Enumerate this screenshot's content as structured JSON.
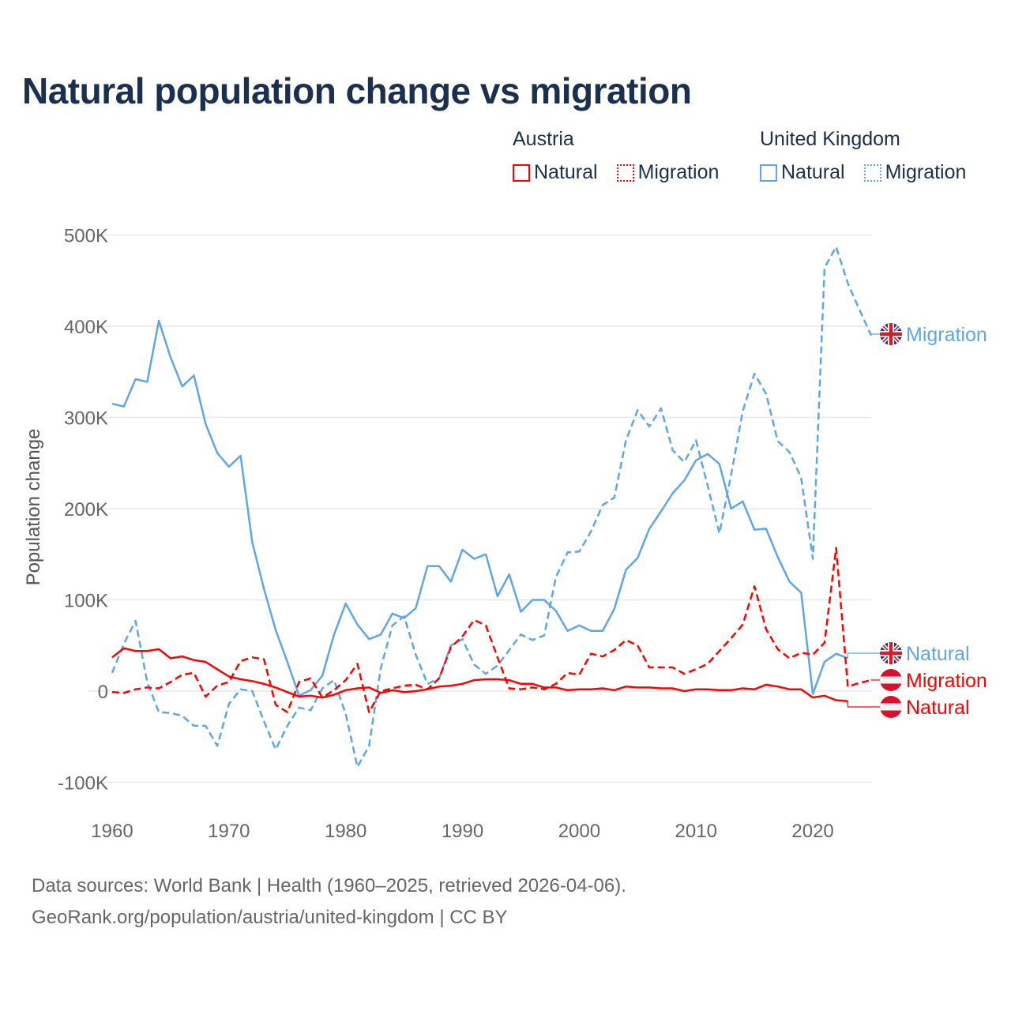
{
  "title": "Natural population change vs migration",
  "legend": {
    "groups": [
      {
        "name": "Austria",
        "items": [
          {
            "label": "Natural",
            "style": "solid"
          },
          {
            "label": "Migration",
            "style": "dotted"
          }
        ]
      },
      {
        "name": "United Kingdom",
        "items": [
          {
            "label": "Natural",
            "style": "solid"
          },
          {
            "label": "Migration",
            "style": "dotted"
          }
        ]
      }
    ]
  },
  "footer": {
    "line1": "Data sources: World Bank | Health (1960–2025, retrieved 2026-04-06).",
    "line2": "GeoRank.org/population/austria/united-kingdom | CC BY"
  },
  "chart_data": {
    "type": "line",
    "title": "Natural population change vs migration",
    "xlabel": "",
    "ylabel": "Population change",
    "xlim": [
      1960,
      2025
    ],
    "ylim": [
      -100000,
      500000
    ],
    "x_ticks": [
      1960,
      1970,
      1980,
      1990,
      2000,
      2010,
      2020
    ],
    "y_ticks": [
      {
        "v": -100000,
        "label": "-100K"
      },
      {
        "v": 0,
        "label": "0"
      },
      {
        "v": 100000,
        "label": "100K"
      },
      {
        "v": 200000,
        "label": "200K"
      },
      {
        "v": 300000,
        "label": "300K"
      },
      {
        "v": 400000,
        "label": "400K"
      },
      {
        "v": 500000,
        "label": "500K"
      }
    ],
    "grid": true,
    "legend_position": "top-right",
    "start_year": 1960,
    "series": [
      {
        "name": "United Kingdom Natural",
        "country": "United Kingdom",
        "kind": "Natural",
        "end_label": "Natural",
        "color": "#5ea6e8",
        "dashed": false,
        "flag": "uk",
        "values_k": [
          315,
          312,
          342,
          339,
          406,
          366,
          334,
          346,
          293,
          261,
          246,
          258,
          163,
          112,
          67,
          32,
          -5,
          1,
          17,
          62,
          96,
          73,
          57,
          62,
          85,
          80,
          91,
          137,
          137,
          120,
          155,
          145,
          150,
          104,
          128,
          87,
          100,
          100,
          88,
          66,
          72,
          66,
          66,
          90,
          133,
          146,
          178,
          197,
          217,
          231,
          253,
          260,
          249,
          200,
          208,
          177,
          178,
          147,
          120,
          108,
          -3,
          32,
          41,
          36
        ]
      },
      {
        "name": "United Kingdom Migration",
        "country": "United Kingdom",
        "kind": "Migration",
        "end_label": "Migration",
        "color": "#5ea6e8",
        "dashed": true,
        "flag": "uk",
        "values_k": [
          20,
          52,
          77,
          10,
          -23,
          -24,
          -27,
          -38,
          -38,
          -60,
          -14,
          2,
          0,
          -33,
          -64,
          -38,
          -18,
          -21,
          3,
          12,
          -25,
          -83,
          -60,
          25,
          72,
          82,
          40,
          8,
          14,
          50,
          57,
          29,
          19,
          28,
          45,
          62,
          56,
          61,
          125,
          152,
          153,
          175,
          204,
          212,
          275,
          308,
          290,
          310,
          264,
          251,
          275,
          225,
          173,
          237,
          307,
          348,
          326,
          274,
          262,
          234,
          145,
          464,
          487,
          447,
          418,
          390
        ]
      },
      {
        "name": "Austria Natural",
        "country": "Austria",
        "kind": "Natural",
        "end_label": "Natural",
        "color": "#ff0000",
        "dashed": false,
        "flag": "at",
        "values_k": [
          37,
          47,
          44,
          44,
          46,
          36,
          38,
          34,
          32,
          24,
          16,
          13,
          11,
          8,
          4,
          -1,
          -6,
          -5,
          -7,
          -4,
          1,
          3,
          4,
          -2,
          1,
          -1,
          0,
          2,
          5,
          6,
          8,
          12,
          13,
          13,
          12,
          8,
          8,
          4,
          4,
          1,
          2,
          2,
          3,
          1,
          5,
          4,
          4,
          3,
          3,
          0,
          2,
          2,
          1,
          1,
          3,
          2,
          7,
          5,
          2,
          2,
          -7,
          -5,
          -10,
          -11
        ]
      },
      {
        "name": "Austria Migration",
        "country": "Austria",
        "kind": "Migration",
        "end_label": "Migration",
        "color": "#ff0000",
        "dashed": true,
        "flag": "at",
        "values_k": [
          -1,
          -2,
          2,
          4,
          3,
          10,
          18,
          20,
          -6,
          6,
          10,
          33,
          37,
          35,
          -15,
          -23,
          10,
          14,
          -7,
          1,
          12,
          30,
          -23,
          0,
          3,
          6,
          7,
          2,
          14,
          48,
          60,
          78,
          72,
          37,
          3,
          2,
          4,
          2,
          8,
          20,
          18,
          41,
          38,
          45,
          56,
          50,
          26,
          26,
          26,
          19,
          24,
          30,
          44,
          58,
          73,
          115,
          68,
          46,
          36,
          42,
          40,
          53,
          157,
          5,
          9,
          12
        ]
      }
    ]
  }
}
